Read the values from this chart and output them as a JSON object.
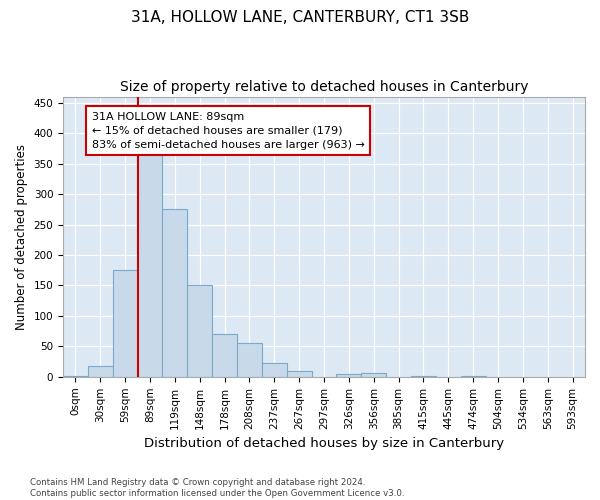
{
  "title1": "31A, HOLLOW LANE, CANTERBURY, CT1 3SB",
  "title2": "Size of property relative to detached houses in Canterbury",
  "xlabel": "Distribution of detached houses by size in Canterbury",
  "ylabel": "Number of detached properties",
  "footnote": "Contains HM Land Registry data © Crown copyright and database right 2024.\nContains public sector information licensed under the Open Government Licence v3.0.",
  "bar_labels": [
    "0sqm",
    "30sqm",
    "59sqm",
    "89sqm",
    "119sqm",
    "148sqm",
    "178sqm",
    "208sqm",
    "237sqm",
    "267sqm",
    "297sqm",
    "326sqm",
    "356sqm",
    "385sqm",
    "415sqm",
    "445sqm",
    "474sqm",
    "504sqm",
    "534sqm",
    "563sqm",
    "593sqm"
  ],
  "bar_values": [
    2,
    18,
    175,
    365,
    275,
    150,
    70,
    55,
    22,
    9,
    0,
    5,
    7,
    0,
    2,
    0,
    2,
    0,
    0,
    0,
    0
  ],
  "bar_color": "#c8daea",
  "bar_edge_color": "#7aaac8",
  "vline_x_index": 3,
  "vline_color": "#cc0000",
  "annotation_text": "31A HOLLOW LANE: 89sqm\n← 15% of detached houses are smaller (179)\n83% of semi-detached houses are larger (963) →",
  "annotation_box_facecolor": "white",
  "annotation_box_edgecolor": "#cc0000",
  "ylim": [
    0,
    460
  ],
  "yticks": [
    0,
    50,
    100,
    150,
    200,
    250,
    300,
    350,
    400,
    450
  ],
  "plot_bg_color": "#dce8f4",
  "title1_fontsize": 11,
  "title2_fontsize": 10,
  "xlabel_fontsize": 9.5,
  "ylabel_fontsize": 8.5,
  "annotation_fontsize": 8,
  "tick_fontsize": 7.5
}
